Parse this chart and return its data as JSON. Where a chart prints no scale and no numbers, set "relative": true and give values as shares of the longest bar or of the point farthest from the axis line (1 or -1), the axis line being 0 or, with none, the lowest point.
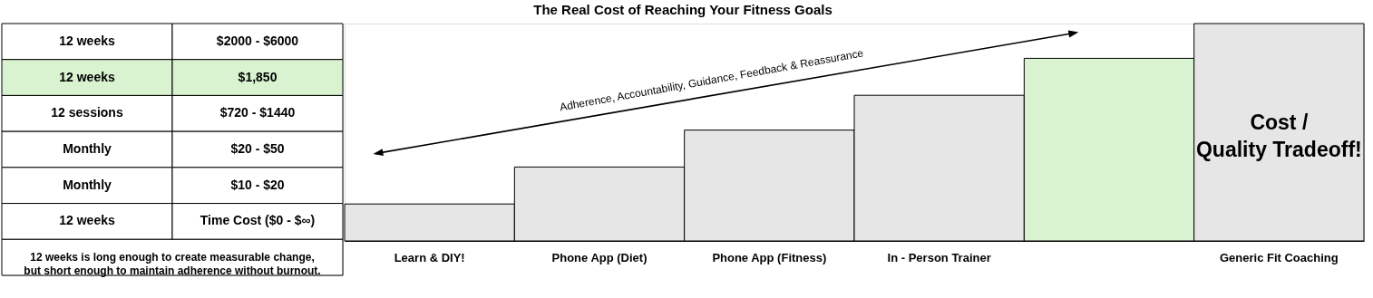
{
  "chart_data": [
    {
      "type": "other",
      "annotations": [
        "12 weeks",
        "$2000 - $6000",
        "12 weeks",
        "$1,850",
        "12 sessions",
        "$720 - $1440",
        "Monthly",
        "$20 - $50",
        "Monthly",
        "$10 - $20",
        "12 weeks",
        "Time Cost ($0 - $∞)",
        "12 weeks is long enough to create measurable change,",
        "but short enough to maintain adherence without burnout."
      ],
      "colors": [
        "#ffffff",
        "#d9f2d0",
        "#ffffff",
        "#ffffff",
        "#ffffff",
        "#ffffff"
      ]
    },
    {
      "type": "bar",
      "relative": true,
      "title": "The Real Cost of Reaching Your Fitness Goals",
      "categories": [
        "Learn & DIY!",
        "Phone App (Diet)",
        "Phone App (Fitness)",
        "In - Person Trainer",
        null,
        "Generic Fit Coaching"
      ],
      "values": [
        0.17,
        0.34,
        0.51,
        0.67,
        0.84,
        1.0
      ],
      "colors": [
        "#e6e6e6",
        "#e6e6e6",
        "#e6e6e6",
        "#e6e6e6",
        "#d9f2d0",
        "#e6e6e6"
      ],
      "annotations": [
        "Adherence, Accountability, Guidance, Feedback & Reassurance",
        "Cost / Quality Tradeoff!"
      ]
    }
  ]
}
